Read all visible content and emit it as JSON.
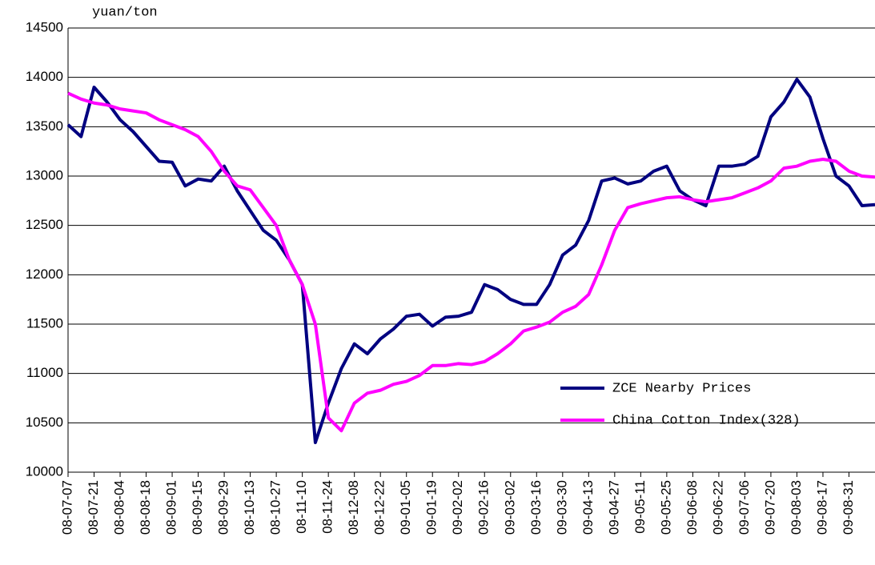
{
  "chart_data": {
    "type": "line",
    "y_label": "yuan/ton",
    "categories": [
      "08-07-07",
      null,
      "08-07-21",
      null,
      "08-08-04",
      null,
      "08-08-18",
      null,
      "08-09-01",
      null,
      "08-09-15",
      null,
      "08-09-29",
      null,
      "08-10-13",
      null,
      "08-10-27",
      null,
      "08-11-10",
      null,
      "08-11-24",
      null,
      "08-12-08",
      null,
      "08-12-22",
      null,
      "09-01-05",
      null,
      "09-01-19",
      null,
      "09-02-02",
      null,
      "09-02-16",
      null,
      "09-03-02",
      null,
      "09-03-16",
      null,
      "09-03-30",
      null,
      "09-04-13",
      null,
      "09-04-27",
      null,
      "09-05-11",
      null,
      "09-05-25",
      null,
      "09-06-08",
      null,
      "09-06-22",
      null,
      "09-07-06",
      null,
      "09-07-20",
      null,
      "09-08-03",
      null,
      "09-08-17",
      null,
      "09-08-31",
      null,
      null
    ],
    "series": [
      {
        "name": "ZCE Nearby Prices",
        "color": "#000080",
        "values": [
          13520,
          13400,
          13900,
          13750,
          13570,
          13450,
          13300,
          13150,
          13140,
          12900,
          12970,
          12950,
          13100,
          12850,
          12650,
          12450,
          12350,
          12150,
          11900,
          10300,
          10700,
          11050,
          11300,
          11200,
          11350,
          11450,
          11580,
          11600,
          11480,
          11570,
          11580,
          11620,
          11900,
          11850,
          11750,
          11700,
          11700,
          11900,
          12200,
          12300,
          12550,
          12950,
          12980,
          12920,
          12950,
          13050,
          13100,
          12850,
          12760,
          12700,
          13100,
          13100,
          13120,
          13200,
          13600,
          13750,
          13980,
          13800,
          13380,
          13000,
          12900,
          12700,
          12710
        ]
      },
      {
        "name": "China Cotton Index(328)",
        "color": "#ff00ff",
        "values": [
          13840,
          13780,
          13740,
          13720,
          13680,
          13660,
          13640,
          13570,
          13520,
          13470,
          13400,
          13250,
          13050,
          12900,
          12860,
          12680,
          12500,
          12150,
          11900,
          11500,
          10550,
          10420,
          10700,
          10800,
          10830,
          10890,
          10920,
          10980,
          11080,
          11080,
          11100,
          11090,
          11120,
          11200,
          11300,
          11430,
          11470,
          11520,
          11620,
          11680,
          11800,
          12100,
          12450,
          12680,
          12720,
          12750,
          12780,
          12790,
          12760,
          12740,
          12760,
          12780,
          12830,
          12880,
          12950,
          13080,
          13100,
          13150,
          13170,
          13150,
          13050,
          13000,
          12990
        ]
      }
    ],
    "ylim": [
      10000,
      14500
    ],
    "yticks": [
      10000,
      10500,
      11000,
      11500,
      12000,
      12500,
      13000,
      13500,
      14000,
      14500
    ],
    "grid": true,
    "legend": "lower right"
  }
}
